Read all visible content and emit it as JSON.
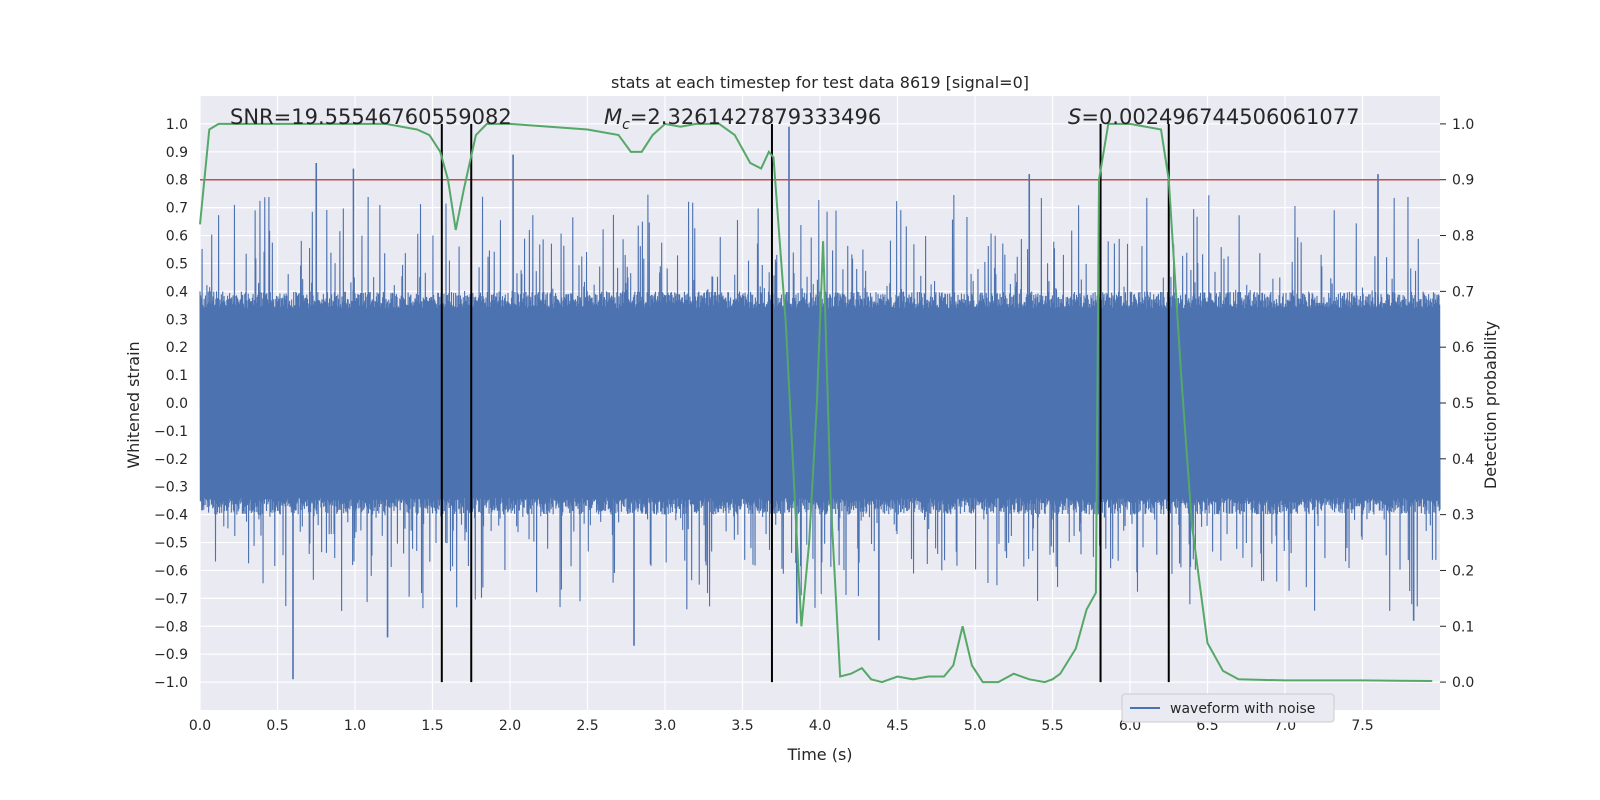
{
  "chart_data": {
    "type": "line",
    "title": "stats at each timestep for test data 8619 [signal=0]",
    "xlabel": "Time (s)",
    "ylabel": "Whitened strain",
    "ylabel_right": "Detection probability",
    "xlim": [
      0.0,
      8.0
    ],
    "ylim": [
      -1.1,
      1.1
    ],
    "ylim_right": [
      -0.05,
      1.05
    ],
    "x_ticks": [
      "0.0",
      "0.5",
      "1.0",
      "1.5",
      "2.0",
      "2.5",
      "3.0",
      "3.5",
      "4.0",
      "4.5",
      "5.0",
      "5.5",
      "6.0",
      "6.5",
      "7.0",
      "7.5"
    ],
    "y_ticks": [
      "1.0",
      "0.9",
      "0.8",
      "0.7",
      "0.6",
      "0.5",
      "0.4",
      "0.3",
      "0.2",
      "0.1",
      "0.0",
      "-0.1",
      "-0.2",
      "-0.3",
      "-0.4",
      "-0.5",
      "-0.6",
      "-0.7",
      "-0.8",
      "-0.9",
      "-1.0"
    ],
    "y_ticks_right": [
      "1.0",
      "0.9",
      "0.8",
      "0.7",
      "0.6",
      "0.5",
      "0.4",
      "0.3",
      "0.2",
      "0.1",
      "0.0"
    ],
    "grid": true,
    "legend": {
      "entries": [
        "waveform with noise"
      ],
      "placement": "lower-right"
    },
    "annotations": {
      "snr": "SNR=19.55546760559082",
      "mc_symbol": "M",
      "mc_sub": "c",
      "mc_value": "=2.3261427879333496",
      "s_symbol": "S",
      "s_value": "=0.002496744506061077"
    },
    "threshold": {
      "y_right": 0.9,
      "color": "#c44e52"
    },
    "vlines": [
      1.56,
      1.75,
      3.69,
      5.81,
      6.25
    ],
    "series": [
      {
        "name": "waveform with noise",
        "color": "#4c72b0",
        "axis": "left",
        "description": "whitened strain noise, envelope ~±0.4 with spikes up to ±1.0",
        "envelope": 0.4,
        "spikes": [
          {
            "x": 0.6,
            "y": -0.99
          },
          {
            "x": 0.75,
            "y": 0.86
          },
          {
            "x": 0.99,
            "y": 0.84
          },
          {
            "x": 1.21,
            "y": -0.84
          },
          {
            "x": 2.02,
            "y": 0.89
          },
          {
            "x": 2.8,
            "y": -0.87
          },
          {
            "x": 3.8,
            "y": 0.99
          },
          {
            "x": 3.85,
            "y": -0.79
          },
          {
            "x": 4.38,
            "y": -0.85
          },
          {
            "x": 5.35,
            "y": 0.82
          },
          {
            "x": 6.25,
            "y": -0.74
          },
          {
            "x": 7.6,
            "y": 0.82
          },
          {
            "x": 7.83,
            "y": -0.78
          }
        ]
      },
      {
        "name": "detection probability",
        "color": "#55a868",
        "axis": "right",
        "x": [
          0.0,
          0.06,
          0.12,
          0.2,
          0.4,
          0.8,
          1.2,
          1.4,
          1.48,
          1.55,
          1.6,
          1.65,
          1.7,
          1.78,
          1.85,
          2.0,
          2.5,
          2.7,
          2.78,
          2.85,
          2.92,
          3.0,
          3.1,
          3.2,
          3.35,
          3.45,
          3.55,
          3.62,
          3.67,
          3.7,
          3.78,
          3.85,
          3.88,
          3.93,
          3.98,
          4.02,
          4.07,
          4.13,
          4.2,
          4.27,
          4.33,
          4.4,
          4.5,
          4.6,
          4.7,
          4.8,
          4.86,
          4.92,
          4.98,
          5.05,
          5.15,
          5.25,
          5.35,
          5.45,
          5.5,
          5.55,
          5.65,
          5.72,
          5.78,
          5.8,
          5.86,
          6.0,
          6.2,
          6.25,
          6.33,
          6.4,
          6.5,
          6.6,
          6.7,
          7.0,
          7.5,
          7.95
        ],
        "values": [
          0.82,
          0.99,
          1.0,
          1.0,
          1.0,
          1.0,
          1.0,
          0.99,
          0.98,
          0.95,
          0.9,
          0.81,
          0.88,
          0.98,
          1.0,
          1.0,
          0.99,
          0.98,
          0.95,
          0.95,
          0.98,
          1.0,
          0.995,
          1.0,
          1.0,
          0.98,
          0.93,
          0.92,
          0.95,
          0.94,
          0.64,
          0.26,
          0.1,
          0.25,
          0.5,
          0.79,
          0.32,
          0.01,
          0.015,
          0.025,
          0.005,
          0.0,
          0.01,
          0.005,
          0.01,
          0.01,
          0.03,
          0.1,
          0.03,
          0.0,
          0.0,
          0.015,
          0.005,
          0.0,
          0.005,
          0.015,
          0.06,
          0.13,
          0.16,
          0.9,
          1.0,
          1.0,
          0.99,
          0.9,
          0.55,
          0.28,
          0.07,
          0.02,
          0.005,
          0.003,
          0.003,
          0.002
        ]
      }
    ]
  }
}
